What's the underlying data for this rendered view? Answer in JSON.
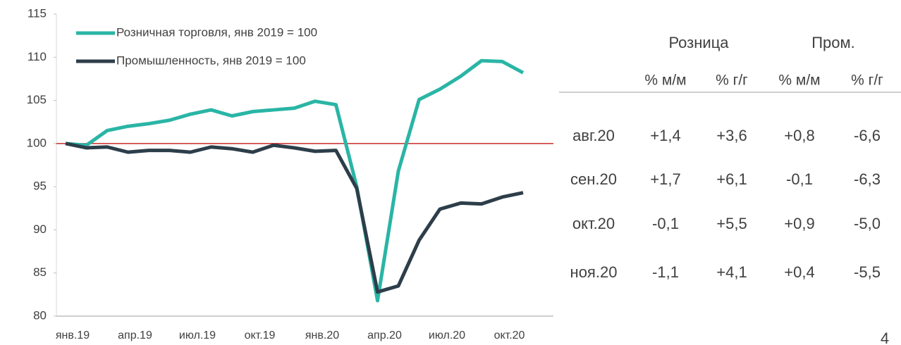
{
  "chart_data": {
    "type": "line",
    "categories": [
      "янв.19",
      null,
      null,
      "апр.19",
      null,
      null,
      "июл.19",
      null,
      null,
      "окт.19",
      null,
      null,
      "янв.20",
      null,
      null,
      "апр.20",
      null,
      null,
      "июл.20",
      null,
      null,
      "окт.20",
      null
    ],
    "series": [
      {
        "name": "Розничная торговля, янв 2019 = 100",
        "color": "#2ab5a5",
        "values": [
          100,
          99.8,
          101.5,
          102,
          102.3,
          102.7,
          103.4,
          103.9,
          103.2,
          103.7,
          103.9,
          104.1,
          104.9,
          104.5,
          95,
          81.8,
          96.8,
          105.1,
          106.3,
          107.8,
          109.6,
          109.5,
          108.2
        ]
      },
      {
        "name": "Промышленность, янв 2019 = 100",
        "color": "#2d3e4a",
        "values": [
          100,
          99.5,
          99.6,
          99,
          99.2,
          99.2,
          99,
          99.6,
          99.4,
          99,
          99.8,
          99.5,
          99.1,
          99.2,
          94.8,
          82.8,
          83.5,
          88.8,
          92.4,
          93.1,
          93,
          93.8,
          94.3
        ]
      }
    ],
    "ylim": [
      80,
      115
    ],
    "yticks": [
      80,
      85,
      90,
      95,
      100,
      105,
      110,
      115
    ],
    "hline": {
      "value": 100,
      "color": "#c00000"
    },
    "legend": "upper left"
  },
  "table": {
    "groups": [
      "Розница",
      "Пром."
    ],
    "columns": [
      "% м/м",
      "% г/г",
      "% м/м",
      "% г/г"
    ],
    "rows": [
      {
        "label": "авг.20",
        "cells": [
          "+1,4",
          "+3,6",
          "+0,8",
          "-6,6"
        ]
      },
      {
        "label": "сен.20",
        "cells": [
          "+1,7",
          "+6,1",
          "-0,1",
          "-6,3"
        ]
      },
      {
        "label": "окт.20",
        "cells": [
          "-0,1",
          "+5,5",
          "+0,9",
          "-5,0"
        ]
      },
      {
        "label": "ноя.20",
        "cells": [
          "-1,1",
          "+4,1",
          "+0,4",
          "-5,5"
        ]
      }
    ]
  },
  "page_number": "4"
}
